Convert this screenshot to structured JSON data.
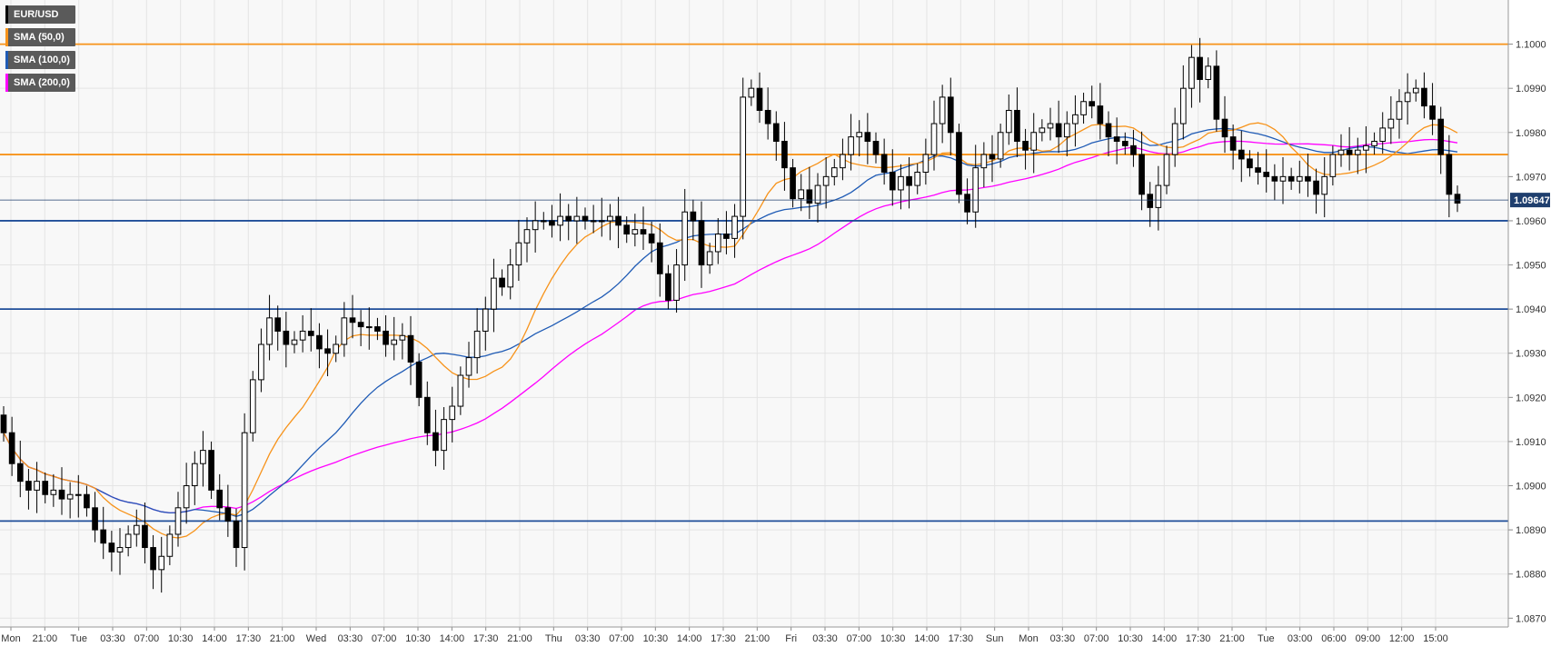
{
  "chart_data": {
    "type": "candlestick",
    "symbol": "EUR/USD",
    "ylim": [
      1.0868,
      1.101
    ],
    "y_ticks": [
      "1.1000",
      "1.0990",
      "1.0980",
      "1.0970",
      "1.0960",
      "1.0950",
      "1.0940",
      "1.0930",
      "1.0920",
      "1.0910",
      "1.0900",
      "1.0890",
      "1.0880",
      "1.0870"
    ],
    "x_ticks": [
      "Mon",
      "21:00",
      "Tue",
      "03:30",
      "07:00",
      "10:30",
      "14:00",
      "17:30",
      "21:00",
      "Wed",
      "03:30",
      "07:00",
      "10:30",
      "14:00",
      "17:30",
      "21:00",
      "Thu",
      "03:30",
      "07:00",
      "10:30",
      "14:00",
      "17:30",
      "21:00",
      "Fri",
      "03:30",
      "07:00",
      "10:30",
      "14:00",
      "17:30",
      "Sun",
      "Mon",
      "03:30",
      "07:00",
      "10:30",
      "14:00",
      "17:30",
      "21:00",
      "Tue",
      "03:00",
      "06:00",
      "09:00",
      "12:00",
      "15:00"
    ],
    "last_price": "1.09647",
    "last_price_value": 1.09647,
    "legend": [
      {
        "label": "EUR/USD",
        "color": "#000000"
      },
      {
        "label": "SMA (50,0)",
        "color": "#f7931a"
      },
      {
        "label": "SMA (100,0)",
        "color": "#1f5bb5"
      },
      {
        "label": "SMA (200,0)",
        "color": "#ff00ff"
      }
    ],
    "horizontal_levels": [
      {
        "value": 1.1,
        "color": "#f7931a"
      },
      {
        "value": 1.0975,
        "color": "#f7931a"
      },
      {
        "value": 1.096,
        "color": "#1f4e99"
      },
      {
        "value": 1.094,
        "color": "#1f4e99"
      },
      {
        "value": 1.0892,
        "color": "#1f4e99"
      }
    ],
    "closes": [
      1.0912,
      1.0905,
      1.0901,
      1.0899,
      1.0901,
      1.0898,
      1.0899,
      1.0897,
      1.0898,
      1.0898,
      1.0895,
      1.089,
      1.0887,
      1.0885,
      1.0886,
      1.0889,
      1.0891,
      1.0886,
      1.0881,
      1.0884,
      1.0889,
      1.0895,
      1.09,
      1.0905,
      1.0908,
      1.0899,
      1.0895,
      1.0892,
      1.0886,
      1.0912,
      1.0924,
      1.0932,
      1.0938,
      1.0935,
      1.0932,
      1.0933,
      1.0935,
      1.0934,
      1.0931,
      1.093,
      1.0932,
      1.0938,
      1.0937,
      1.0936,
      1.0936,
      1.0935,
      1.0932,
      1.0933,
      1.0934,
      1.0928,
      1.092,
      1.0912,
      1.0908,
      1.0915,
      1.0918,
      1.0925,
      1.0929,
      1.0935,
      1.094,
      1.0947,
      1.0945,
      1.095,
      1.0955,
      1.0958,
      1.096,
      1.096,
      1.0959,
      1.0961,
      1.096,
      1.0961,
      1.096,
      1.096,
      1.096,
      1.0961,
      1.0959,
      1.0957,
      1.0958,
      1.0957,
      1.0955,
      1.0948,
      1.0942,
      1.095,
      1.0962,
      1.096,
      1.095,
      1.0953,
      1.0957,
      1.0956,
      1.0961,
      1.0988,
      1.099,
      1.0985,
      1.0982,
      1.0978,
      1.0972,
      1.0965,
      1.0967,
      1.0964,
      1.0968,
      1.097,
      1.0972,
      1.0975,
      1.0979,
      1.098,
      1.0978,
      1.0975,
      1.0971,
      1.0967,
      1.097,
      1.0968,
      1.0971,
      1.0975,
      1.0982,
      1.0988,
      1.098,
      1.0966,
      1.0962,
      1.0972,
      1.0975,
      1.0974,
      1.098,
      1.0985,
      1.0978,
      1.0976,
      1.098,
      1.0981,
      1.0982,
      1.0979,
      1.0982,
      1.0984,
      1.0987,
      1.0986,
      1.0982,
      1.0979,
      1.0978,
      1.0977,
      1.0975,
      1.0966,
      1.0963,
      1.0968,
      1.0975,
      1.0982,
      1.099,
      1.0997,
      1.0992,
      1.0995,
      1.0983,
      1.0979,
      1.0976,
      1.0974,
      1.0972,
      1.0971,
      1.097,
      1.0969,
      1.097,
      1.0969,
      1.097,
      1.0969,
      1.0966,
      1.097,
      1.0975,
      1.0976,
      1.0975,
      1.0976,
      1.0977,
      1.0978,
      1.0981,
      1.0983,
      1.0987,
      1.0989,
      1.099,
      1.0986,
      1.0983,
      1.0975,
      1.0966,
      1.0964
    ]
  }
}
